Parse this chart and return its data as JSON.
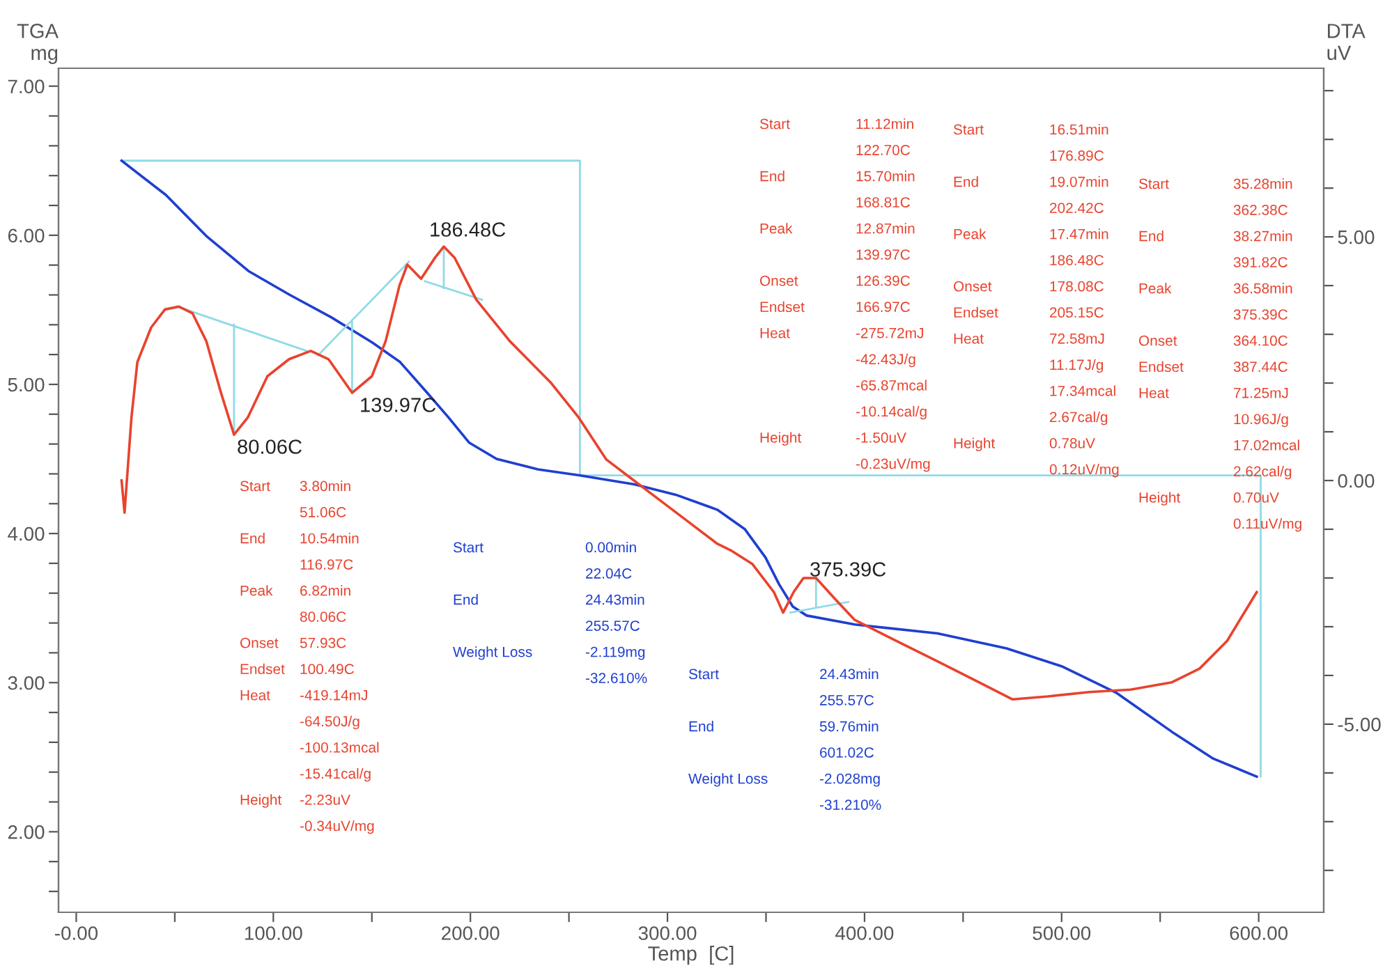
{
  "chart_data": {
    "type": "line",
    "xlabel": "Temp  [C]",
    "ylabel": "TGA\nmg",
    "y2label": "DTA\nuV",
    "xlim": [
      -9,
      633
    ],
    "ylim": [
      1.46,
      7.12
    ],
    "y2lim": [
      -8.86,
      8.46
    ],
    "xticks": [
      {
        "value": 0,
        "label": "-0.00"
      },
      {
        "value": 50,
        "label": null
      },
      {
        "value": 100,
        "label": "100.00"
      },
      {
        "value": 150,
        "label": null
      },
      {
        "value": 200,
        "label": "200.00"
      },
      {
        "value": 250,
        "label": null
      },
      {
        "value": 300,
        "label": "300.00"
      },
      {
        "value": 350,
        "label": null
      },
      {
        "value": 400,
        "label": "400.00"
      },
      {
        "value": 450,
        "label": null
      },
      {
        "value": 500,
        "label": "500.00"
      },
      {
        "value": 550,
        "label": null
      },
      {
        "value": 600,
        "label": "600.00"
      }
    ],
    "yticks": [
      {
        "value": 1.6,
        "label": null
      },
      {
        "value": 1.8,
        "label": null
      },
      {
        "value": 2,
        "label": "2.00"
      },
      {
        "value": 2.2,
        "label": null
      },
      {
        "value": 2.4,
        "label": null
      },
      {
        "value": 2.6,
        "label": null
      },
      {
        "value": 2.8,
        "label": null
      },
      {
        "value": 3,
        "label": "3.00"
      },
      {
        "value": 3.2,
        "label": null
      },
      {
        "value": 3.4,
        "label": null
      },
      {
        "value": 3.6,
        "label": null
      },
      {
        "value": 3.8,
        "label": null
      },
      {
        "value": 4,
        "label": "4.00"
      },
      {
        "value": 4.2,
        "label": null
      },
      {
        "value": 4.4,
        "label": null
      },
      {
        "value": 4.6,
        "label": null
      },
      {
        "value": 4.8,
        "label": null
      },
      {
        "value": 5,
        "label": "5.00"
      },
      {
        "value": 5.2,
        "label": null
      },
      {
        "value": 5.4,
        "label": null
      },
      {
        "value": 5.6,
        "label": null
      },
      {
        "value": 5.8,
        "label": null
      },
      {
        "value": 6,
        "label": "6.00"
      },
      {
        "value": 6.2,
        "label": null
      },
      {
        "value": 6.4,
        "label": null
      },
      {
        "value": 6.6,
        "label": null
      },
      {
        "value": 6.8,
        "label": null
      },
      {
        "value": 7,
        "label": "7.00"
      }
    ],
    "y2ticks": [
      {
        "value": -8,
        "label": null
      },
      {
        "value": -7,
        "label": null
      },
      {
        "value": -6,
        "label": null
      },
      {
        "value": -5,
        "label": "-5.00"
      },
      {
        "value": -4,
        "label": null
      },
      {
        "value": -3,
        "label": null
      },
      {
        "value": -2,
        "label": null
      },
      {
        "value": -1,
        "label": null
      },
      {
        "value": 0,
        "label": "0.00"
      },
      {
        "value": 1,
        "label": null
      },
      {
        "value": 2,
        "label": null
      },
      {
        "value": 3,
        "label": null
      },
      {
        "value": 4,
        "label": null
      },
      {
        "value": 5,
        "label": "5.00"
      },
      {
        "value": 6,
        "label": null
      },
      {
        "value": 7,
        "label": null
      },
      {
        "value": 8,
        "label": null
      }
    ],
    "grid": false,
    "marker": "none",
    "line_style": "solid",
    "series": [
      {
        "color": "#1f3fd0",
        "x": [
          23,
          45.5,
          66.4,
          87.4,
          108.4,
          129.4,
          150.3,
          164.3,
          178.3,
          188.8,
          199.3,
          213.3,
          234.3,
          255.2,
          283.2,
          304.2,
          325.2,
          339.2,
          349.7,
          356.6,
          363.6,
          370.6,
          395.1,
          437,
          472,
          500,
          528,
          556,
          577,
          599
        ],
        "values": [
          6.5,
          6.27,
          5.99,
          5.76,
          5.6,
          5.45,
          5.28,
          5.15,
          4.94,
          4.78,
          4.61,
          4.5,
          4.43,
          4.39,
          4.33,
          4.26,
          4.16,
          4.03,
          3.84,
          3.66,
          3.51,
          3.45,
          3.39,
          3.33,
          3.23,
          3.11,
          2.93,
          2.67,
          2.49,
          2.37
        ]
      },
      {
        "color": "#e8432e",
        "axis": "y2",
        "x": [
          23,
          24.5,
          28,
          31,
          38,
          45,
          52,
          59,
          66,
          73,
          80.06,
          87,
          97,
          108,
          119,
          128,
          139.97,
          150,
          157,
          164,
          168,
          175,
          182,
          186.48,
          192,
          203,
          220,
          241,
          255,
          269,
          283,
          297,
          311,
          325,
          332,
          343,
          354,
          358.7,
          364,
          369,
          375.39,
          385,
          395,
          416,
          437,
          458,
          475,
          493,
          514,
          535,
          556,
          570,
          584,
          599
        ],
        "values": [
          0,
          -0.66,
          1.29,
          2.43,
          3.14,
          3.51,
          3.57,
          3.43,
          2.86,
          1.86,
          0.94,
          1.29,
          2.14,
          2.49,
          2.66,
          2.49,
          1.8,
          2.14,
          2.86,
          4.0,
          4.43,
          4.14,
          4.57,
          4.8,
          4.57,
          3.71,
          2.86,
          2.0,
          1.29,
          0.43,
          0,
          -0.43,
          -0.86,
          -1.29,
          -1.43,
          -1.71,
          -2.29,
          -2.71,
          -2.29,
          -2.0,
          -2.0,
          -2.43,
          -2.86,
          -3.29,
          -3.71,
          -4.14,
          -4.49,
          -4.43,
          -4.34,
          -4.29,
          -4.14,
          -3.86,
          -3.29,
          -2.29
        ]
      },
      {
        "color": "#8fdbe6",
        "x": [
          23,
          255.57,
          255.57,
          601.02,
          601.02
        ],
        "values": [
          6.5,
          6.5,
          4.39,
          4.39,
          2.37
        ]
      },
      {
        "color": "#8fdbe6",
        "axis": "y2",
        "x": [
          51.06,
          116.97
        ],
        "values": [
          3.57,
          2.66
        ]
      },
      {
        "color": "#8fdbe6",
        "axis": "y2",
        "x": [
          80.06,
          80.06
        ],
        "values": [
          0.94,
          3.2
        ]
      },
      {
        "color": "#8fdbe6",
        "axis": "y2",
        "x": [
          122.7,
          168.81
        ],
        "values": [
          2.57,
          4.49
        ]
      },
      {
        "color": "#8fdbe6",
        "axis": "y2",
        "x": [
          139.97,
          139.97
        ],
        "values": [
          1.8,
          3.25
        ]
      },
      {
        "color": "#8fdbe6",
        "axis": "y2",
        "x": [
          176.89,
          206
        ],
        "values": [
          4.09,
          3.71
        ]
      },
      {
        "color": "#8fdbe6",
        "axis": "y2",
        "x": [
          186.48,
          186.48
        ],
        "values": [
          4.8,
          3.95
        ]
      },
      {
        "color": "#8fdbe6",
        "axis": "y2",
        "x": [
          362.38,
          391.82
        ],
        "values": [
          -2.71,
          -2.49
        ]
      },
      {
        "color": "#8fdbe6",
        "axis": "y2",
        "x": [
          375.39,
          375.39
        ],
        "values": [
          -2.0,
          -2.6
        ]
      }
    ],
    "annotations": [
      "80.06C",
      "139.97C",
      "186.48C",
      "375.39C",
      "Start\n\nEnd\n\nPeak\n\nOnset\nEndset\nHeat\n\n\n\nHeight",
      "3.80min\n51.06C\n10.54min\n116.97C\n6.82min\n80.06C\n57.93C\n100.49C\n-419.14mJ\n-64.50J/g\n-100.13mcal\n-15.41cal/g\n-2.23uV\n-0.34uV/mg",
      "Start\n\nEnd\n\nPeak\n\nOnset\nEndset\nHeat\n\n\n\nHeight",
      "11.12min\n122.70C\n15.70min\n168.81C\n12.87min\n139.97C\n126.39C\n166.97C\n-275.72mJ\n-42.43J/g\n-65.87mcal\n-10.14cal/g\n-1.50uV\n-0.23uV/mg",
      "Start\n\nEnd\n\nPeak\n\nOnset\nEndset\nHeat\n\n\n\nHeight",
      "16.51min\n176.89C\n19.07min\n202.42C\n17.47min\n186.48C\n178.08C\n205.15C\n72.58mJ\n11.17J/g\n17.34mcal\n2.67cal/g\n0.78uV\n0.12uV/mg",
      "Start\n\nEnd\n\nPeak\n\nOnset\nEndset\nHeat\n\n\n\nHeight",
      "35.28min\n362.38C\n38.27min\n391.82C\n36.58min\n375.39C\n364.10C\n387.44C\n71.25mJ\n10.96J/g\n17.02mcal\n2.62cal/g\n0.70uV\n0.11uV/mg",
      "Start\n\nEnd\n\nWeight Loss",
      "0.00min\n22.04C\n24.43min\n255.57C\n-2.119mg\n-32.610%",
      "Start\n\nEnd\n\nWeight Loss",
      "24.43min\n255.57C\n59.76min\n601.02C\n-2.028mg\n-31.210%"
    ]
  }
}
